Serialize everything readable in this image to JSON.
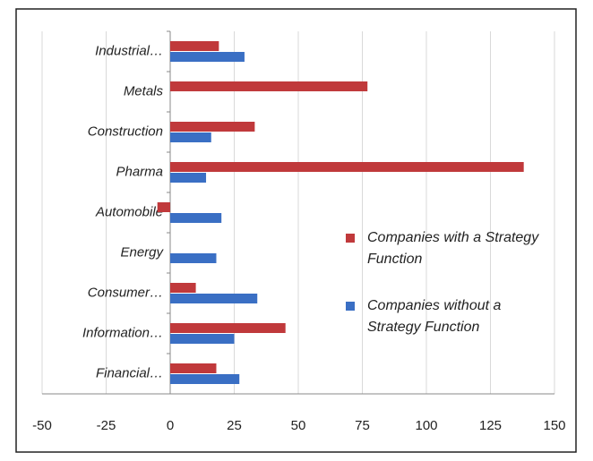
{
  "chart_data": {
    "type": "barh",
    "categories": [
      "Industrial…",
      "Metals",
      "Construction",
      "Pharma",
      "Automobile",
      "Energy",
      "Consumer…",
      "Information…",
      "Financial…"
    ],
    "series": [
      {
        "name": "Companies with a Strategy Function",
        "color": "#c0393b",
        "values": [
          19,
          77,
          33,
          138,
          -5,
          null,
          10,
          45,
          18
        ]
      },
      {
        "name": "Companies without a Strategy Function",
        "color": "#3a6fc4",
        "values": [
          29,
          null,
          16,
          14,
          20,
          18,
          34,
          25,
          27
        ]
      }
    ],
    "xlim": [
      -50,
      150
    ],
    "xticks": [
      -50,
      -25,
      0,
      25,
      50,
      75,
      100,
      125,
      150
    ],
    "grid": true
  }
}
